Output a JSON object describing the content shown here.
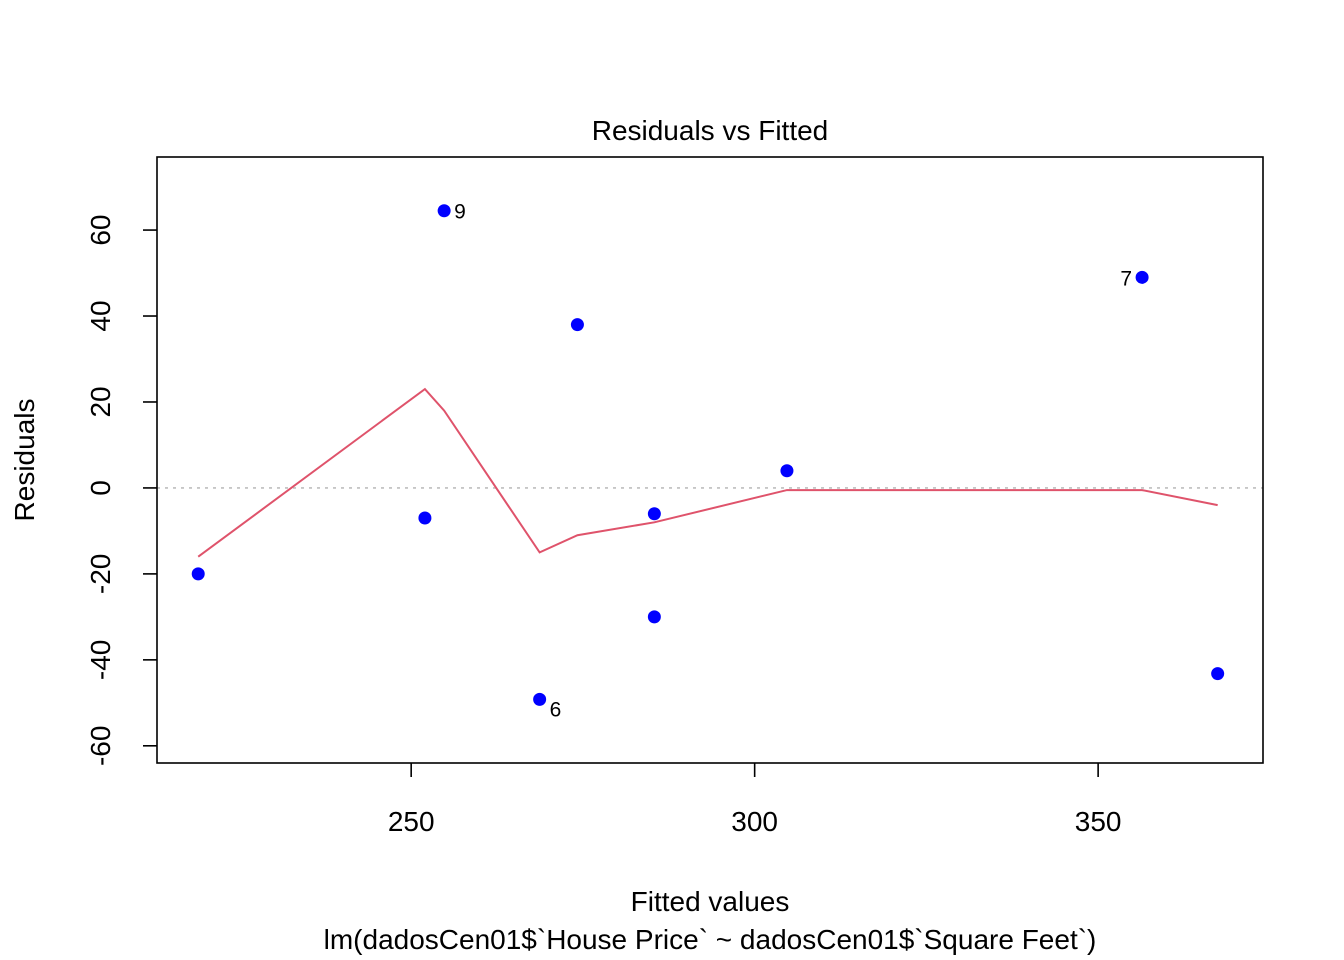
{
  "chart_data": {
    "type": "scatter",
    "title": "Residuals vs Fitted",
    "xlabel": "Fitted values",
    "sublabel": "lm(dadosCen01$`House Price` ~ dadosCen01$`Square Feet`)",
    "ylabel": "Residuals",
    "xlim": [
      213,
      374
    ],
    "ylim": [
      -64,
      77
    ],
    "xticks": [
      250,
      300,
      350
    ],
    "yticks": [
      -60,
      -40,
      -20,
      0,
      20,
      40,
      60
    ],
    "x_tick_labels": [
      "250",
      "300",
      "350"
    ],
    "y_tick_labels": [
      "-60",
      "-40",
      "-20",
      "0",
      "20",
      "40",
      "60"
    ],
    "points": [
      {
        "x": 219.0,
        "y": -20.0,
        "label": ""
      },
      {
        "x": 252.0,
        "y": -7.0,
        "label": ""
      },
      {
        "x": 254.8,
        "y": 64.5,
        "label": "9"
      },
      {
        "x": 268.7,
        "y": -49.2,
        "label": "6"
      },
      {
        "x": 274.2,
        "y": 38.0,
        "label": ""
      },
      {
        "x": 285.4,
        "y": -6.0,
        "label": ""
      },
      {
        "x": 285.4,
        "y": -30.0,
        "label": ""
      },
      {
        "x": 304.7,
        "y": 4.0,
        "label": ""
      },
      {
        "x": 356.4,
        "y": 49.0,
        "label": "7"
      },
      {
        "x": 367.4,
        "y": -43.2,
        "label": ""
      }
    ],
    "smooth_line": {
      "x": [
        219.0,
        252.0,
        254.8,
        268.7,
        274.2,
        285.4,
        304.7,
        356.4,
        367.4
      ],
      "y": [
        -16.0,
        23.0,
        18.0,
        -15.0,
        -11.0,
        -8.0,
        -0.5,
        -0.5,
        -4.0
      ]
    },
    "reference_line_y": 0,
    "colors": {
      "points": "#0000FF",
      "smooth": "#DF536B",
      "reference": "#BEBEBE",
      "frame": "#000000"
    },
    "grid": false,
    "legend": "none"
  }
}
